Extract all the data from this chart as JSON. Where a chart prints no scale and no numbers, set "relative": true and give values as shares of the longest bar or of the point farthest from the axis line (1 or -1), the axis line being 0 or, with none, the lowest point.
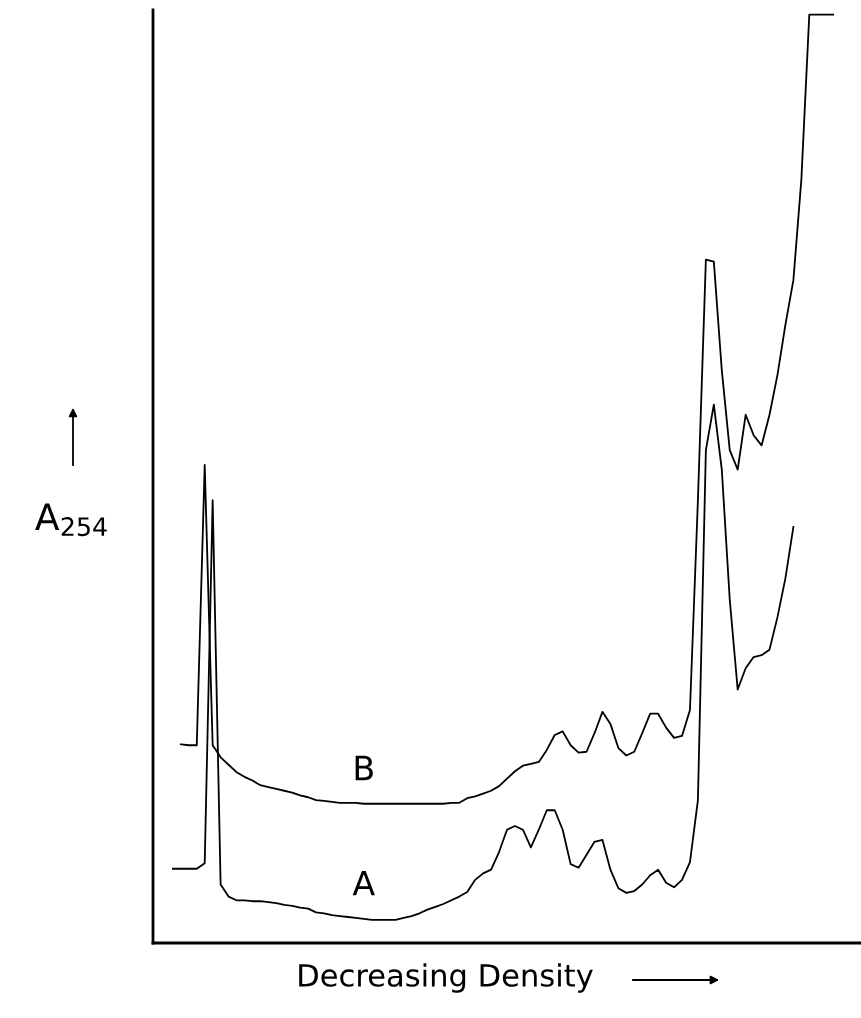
{
  "chart_data": {
    "type": "line",
    "relative": true,
    "xlabel": "Decreasing Density",
    "ylabel": "A$_{254}$",
    "categories": [
      null,
      null,
      null,
      null,
      null,
      null,
      null,
      null,
      null,
      null,
      null,
      null,
      null,
      null,
      null,
      null,
      null,
      null,
      null,
      null,
      null,
      null,
      null,
      null,
      null,
      null,
      null,
      null,
      null,
      null,
      null,
      null,
      null,
      null,
      null,
      null,
      null,
      null,
      null,
      null,
      null,
      null,
      null,
      null,
      null,
      null,
      null,
      null,
      null,
      null,
      null,
      null,
      null,
      null,
      null,
      null,
      null,
      null,
      null,
      null,
      null,
      null,
      null,
      null,
      null,
      null,
      null,
      null,
      null,
      null,
      null,
      null,
      null,
      null,
      null,
      null,
      null,
      null,
      null,
      null,
      null,
      null,
      null,
      null,
      null,
      null,
      null,
      null,
      null
    ],
    "series": [
      {
        "name": "B",
        "color": "#000000",
        "values": [
          null,
          null,
          null,
          0.214,
          0.213,
          0.213,
          0.515,
          0.213,
          0.2,
          0.192,
          0.184,
          0.179,
          0.175,
          0.17,
          0.168,
          0.166,
          0.164,
          0.162,
          0.159,
          0.157,
          0.154,
          0.153,
          0.152,
          0.151,
          0.151,
          0.151,
          0.15,
          0.15,
          0.15,
          0.15,
          0.15,
          0.15,
          0.15,
          0.15,
          0.15,
          0.15,
          0.15,
          0.151,
          0.151,
          0.156,
          0.158,
          0.161,
          0.164,
          0.169,
          0.177,
          0.185,
          0.191,
          0.193,
          0.195,
          0.208,
          0.224,
          0.228,
          0.213,
          0.205,
          0.206,
          0.226,
          0.249,
          0.236,
          0.21,
          0.202,
          0.206,
          0.226,
          0.247,
          0.247,
          0.232,
          0.221,
          0.223,
          0.251,
          0.477,
          0.736,
          0.734,
          0.617,
          0.531,
          0.51,
          0.569,
          0.547,
          0.536,
          0.569,
          0.612,
          0.666,
          0.714,
          0.822,
          1,
          1,
          1,
          1,
          null,
          null,
          null
        ]
      },
      {
        "name": "A",
        "color": "#000000",
        "values": [
          null,
          null,
          0.08,
          0.08,
          0.08,
          0.08,
          0.086,
          0.477,
          0.063,
          0.05,
          0.046,
          0.046,
          0.045,
          0.045,
          0.044,
          0.043,
          0.041,
          0.04,
          0.038,
          0.037,
          0.033,
          0.032,
          0.03,
          0.029,
          0.028,
          0.027,
          0.026,
          0.025,
          0.025,
          0.025,
          0.025,
          0.027,
          0.029,
          0.032,
          0.036,
          0.039,
          0.042,
          0.046,
          0.05,
          0.055,
          0.068,
          0.075,
          0.079,
          0.098,
          0.122,
          0.126,
          0.122,
          0.103,
          0.122,
          0.143,
          0.143,
          0.122,
          0.085,
          0.081,
          0.095,
          0.109,
          0.111,
          0.079,
          0.059,
          0.054,
          0.056,
          0.063,
          0.073,
          0.079,
          0.065,
          0.06,
          0.068,
          0.087,
          0.154,
          0.531,
          0.58,
          0.51,
          0.37,
          0.273,
          0.296,
          0.308,
          0.31,
          0.316,
          0.351,
          0.393,
          0.448,
          null,
          null,
          null,
          null,
          null,
          null,
          null,
          null
        ]
      }
    ]
  }
}
